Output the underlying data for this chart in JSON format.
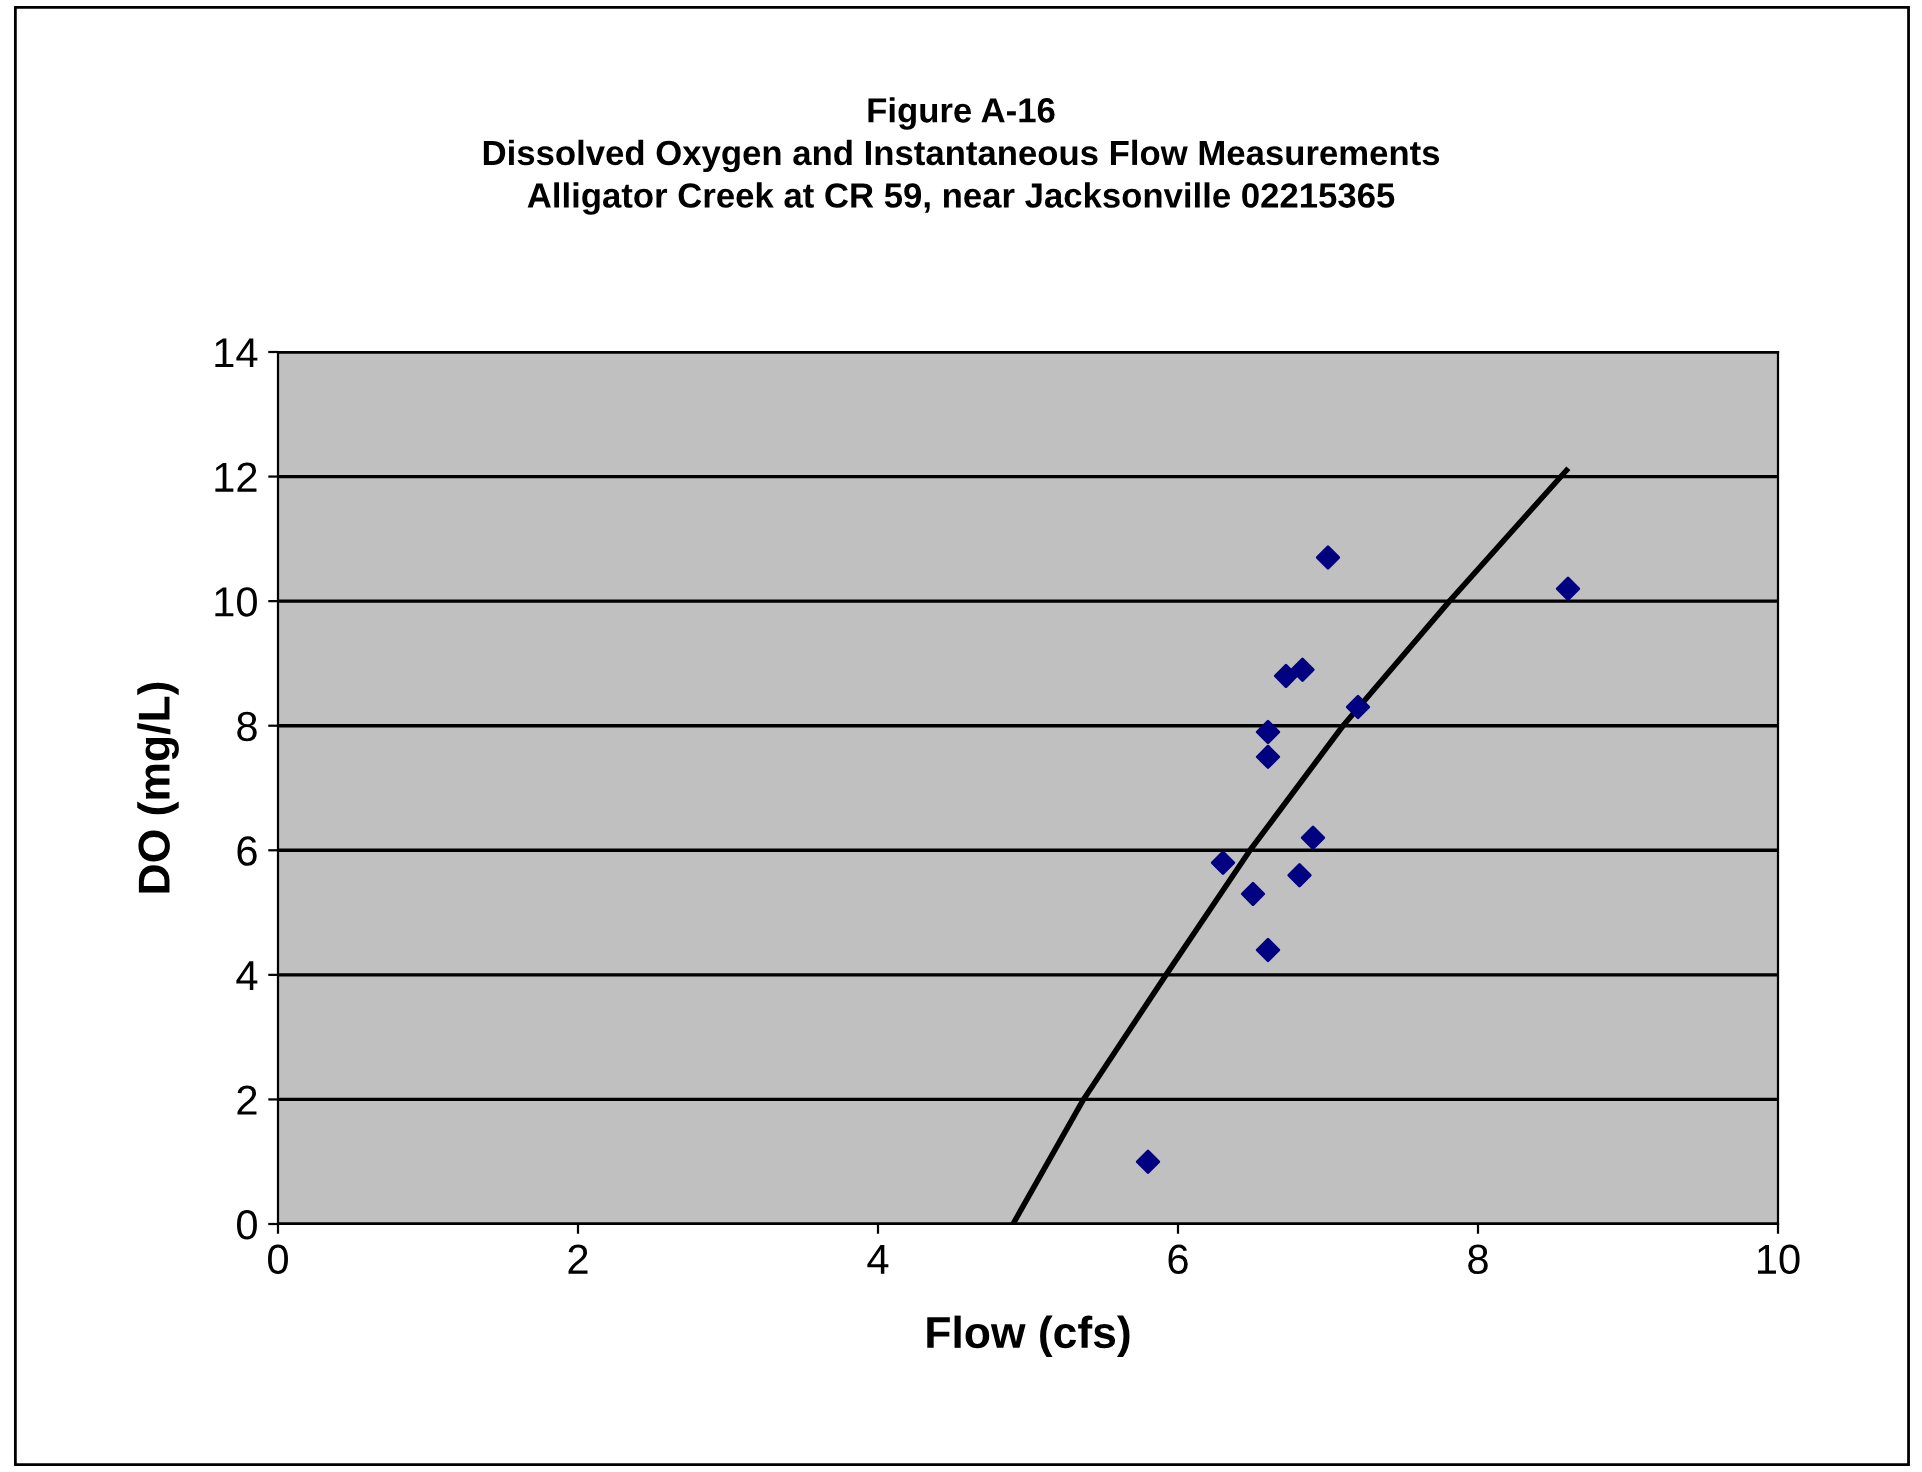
{
  "chart_data": {
    "type": "scatter",
    "title": "Figure A-16\nDissolved Oxygen and Instantaneous Flow Measurements\nAlligator Creek at CR 59, near Jacksonville 02215365",
    "xlabel": "Flow (cfs)",
    "ylabel": "DO (mg/L)",
    "xlim": [
      0,
      10
    ],
    "xticks": [
      0,
      2,
      4,
      6,
      8,
      10
    ],
    "ylim": [
      0,
      14
    ],
    "yticks": [
      0,
      2,
      4,
      6,
      8,
      10,
      12,
      14
    ],
    "grid": "y",
    "marker": "diamond",
    "legend": false,
    "series": [
      {
        "color": "#000080",
        "x": [
          5.8,
          6.3,
          6.5,
          6.6,
          6.6,
          6.6,
          6.72,
          6.83,
          6.81,
          6.9,
          7.0,
          7.2,
          8.6
        ],
        "values": [
          1.0,
          5.8,
          5.3,
          4.4,
          7.9,
          7.5,
          8.8,
          8.9,
          5.6,
          6.2,
          10.7,
          8.3,
          10.2
        ]
      },
      {
        "type": "line",
        "color": "#000000",
        "marker": "none",
        "x": [
          4.9,
          5.37,
          5.92,
          6.48,
          7.1,
          7.81,
          8.59
        ],
        "values": [
          0,
          2,
          4,
          6,
          8,
          10,
          12.1
        ]
      }
    ]
  }
}
